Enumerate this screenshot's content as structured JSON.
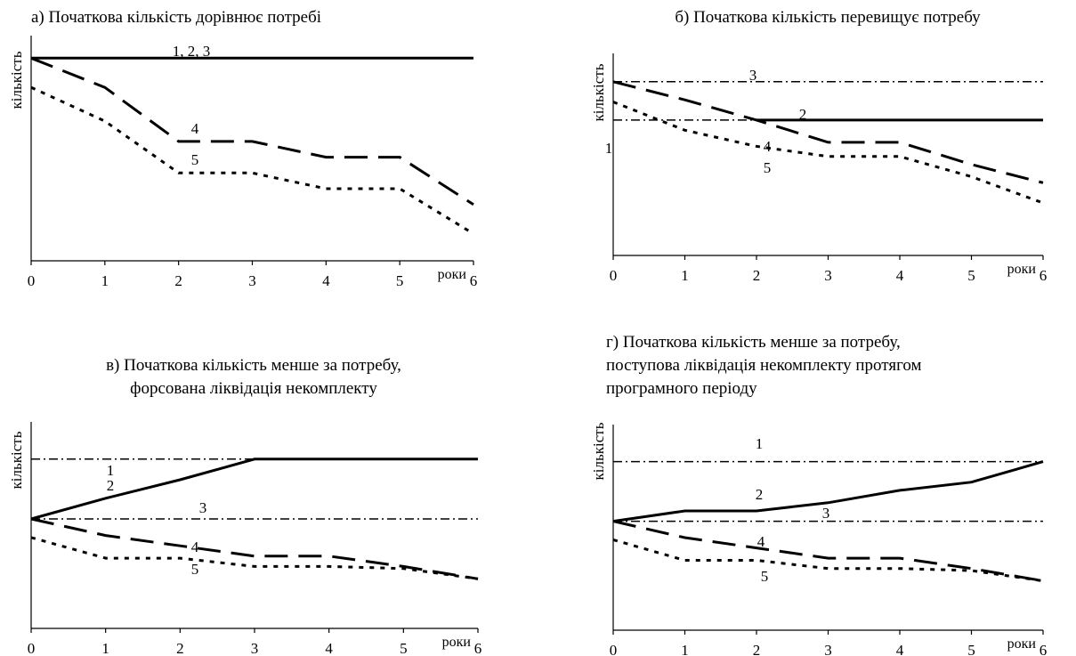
{
  "chart_data": [
    {
      "type": "line",
      "title": [
        "а) Початкова кількість дорівнює потребі"
      ],
      "ylabel": "кількість",
      "xlabel": "роки",
      "x_ticks": [
        "0",
        "1",
        "2",
        "3",
        "4",
        "5",
        "6"
      ],
      "xlim": [
        0,
        6
      ],
      "ylim": [
        0,
        100
      ],
      "series": [
        {
          "name": "1, 2, 3",
          "style": "solid",
          "x": [
            0,
            6
          ],
          "y": [
            90,
            90
          ]
        },
        {
          "name": "4",
          "style": "dash",
          "x": [
            0,
            1,
            2,
            3,
            4,
            5,
            6
          ],
          "y": [
            90,
            77,
            53,
            53,
            46,
            46,
            25
          ]
        },
        {
          "name": "5",
          "style": "dot",
          "x": [
            0,
            1,
            2,
            3,
            4,
            5,
            6
          ],
          "y": [
            77,
            62,
            39,
            39,
            32,
            32,
            12
          ]
        }
      ]
    },
    {
      "type": "line",
      "title": [
        "б) Початкова кількість перевищує потребу"
      ],
      "ylabel": "кількість",
      "xlabel": "роки",
      "x_ticks": [
        "0",
        "1",
        "2",
        "3",
        "4",
        "5",
        "6"
      ],
      "xlim": [
        0,
        6
      ],
      "ylim": [
        0,
        100
      ],
      "series": [
        {
          "name": "1",
          "style": "dashdot",
          "x": [
            0,
            6
          ],
          "y": [
            67,
            67
          ]
        },
        {
          "name": "2",
          "style": "solid",
          "x": [
            2,
            6
          ],
          "y": [
            67,
            67
          ]
        },
        {
          "name": "3",
          "style": "dashdot",
          "x": [
            0,
            6
          ],
          "y": [
            86,
            86
          ]
        },
        {
          "name": "4",
          "style": "dash",
          "x": [
            0,
            1,
            2,
            3,
            4,
            5,
            6
          ],
          "y": [
            86,
            77,
            67,
            56,
            56,
            45,
            36
          ]
        },
        {
          "name": "5",
          "style": "dot",
          "x": [
            0,
            1,
            2,
            3,
            4,
            5,
            6
          ],
          "y": [
            76,
            62,
            54,
            49,
            49,
            39,
            26
          ]
        }
      ]
    },
    {
      "type": "line",
      "title": [
        "в) Початкова кількість менше за потребу,",
        "форсована ліквідація некомплекту"
      ],
      "ylabel": "кількість",
      "xlabel": "роки",
      "x_ticks": [
        "0",
        "1",
        "2",
        "3",
        "4",
        "5",
        "6"
      ],
      "xlim": [
        0,
        6
      ],
      "ylim": [
        0,
        100
      ],
      "series": [
        {
          "name": "1",
          "style": "dashdot",
          "x": [
            0,
            6
          ],
          "y": [
            82,
            82
          ]
        },
        {
          "name": "2",
          "style": "solid",
          "x": [
            0,
            1,
            2,
            3,
            4,
            5,
            6
          ],
          "y": [
            53,
            63,
            72,
            82,
            82,
            82,
            82
          ]
        },
        {
          "name": "3",
          "style": "dashdot",
          "x": [
            0,
            6
          ],
          "y": [
            53,
            53
          ]
        },
        {
          "name": "4",
          "style": "dash",
          "x": [
            0,
            1,
            2,
            3,
            4,
            5,
            6
          ],
          "y": [
            53,
            45,
            40,
            35,
            35,
            30,
            24
          ]
        },
        {
          "name": "5",
          "style": "dot",
          "x": [
            0,
            1,
            2,
            3,
            4,
            5,
            6
          ],
          "y": [
            44,
            34,
            34,
            30,
            30,
            29,
            24
          ]
        }
      ]
    },
    {
      "type": "line",
      "title": [
        "г) Початкова кількість менше за потребу,",
        "поступова ліквідація некомплекту протягом",
        "програмного періоду"
      ],
      "ylabel": "кількість",
      "xlabel": "роки",
      "x_ticks": [
        "0",
        "1",
        "2",
        "3",
        "4",
        "5",
        "6"
      ],
      "xlim": [
        0,
        6
      ],
      "ylim": [
        0,
        100
      ],
      "series": [
        {
          "name": "1",
          "style": "dashdot",
          "x": [
            0,
            6
          ],
          "y": [
            82,
            82
          ]
        },
        {
          "name": "2",
          "style": "solid",
          "x": [
            0,
            1,
            2,
            3,
            4,
            5,
            6
          ],
          "y": [
            53,
            58,
            58,
            62,
            68,
            72,
            82
          ]
        },
        {
          "name": "3",
          "style": "dashdot",
          "x": [
            0,
            6
          ],
          "y": [
            53,
            53
          ]
        },
        {
          "name": "4",
          "style": "dash",
          "x": [
            0,
            1,
            2,
            3,
            4,
            5,
            6
          ],
          "y": [
            53,
            45,
            40,
            35,
            35,
            30,
            24
          ]
        },
        {
          "name": "5",
          "style": "dot",
          "x": [
            0,
            1,
            2,
            3,
            4,
            5,
            6
          ],
          "y": [
            44,
            34,
            34,
            30,
            30,
            29,
            24
          ]
        }
      ]
    }
  ]
}
